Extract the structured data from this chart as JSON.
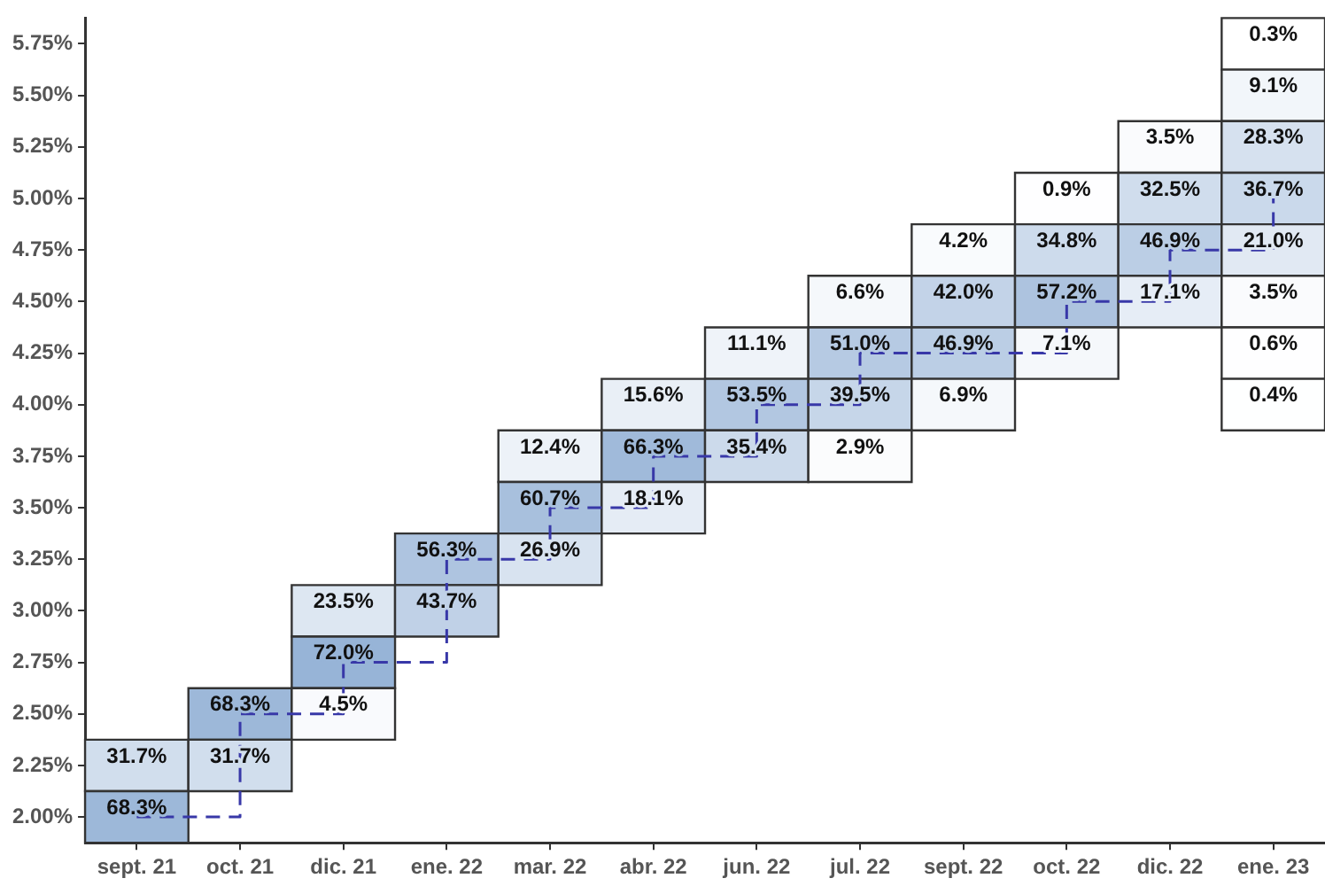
{
  "chart_data": {
    "type": "heatmap",
    "categories": [
      "sept. 21",
      "oct. 21",
      "dic. 21",
      "ene. 22",
      "mar. 22",
      "abr. 22",
      "jun. 22",
      "jul. 22",
      "sept. 22",
      "oct. 22",
      "dic. 22",
      "ene. 23"
    ],
    "ylim": [
      1.875,
      5.875
    ],
    "yticks": [
      {
        "value": 2,
        "label": "2.00%"
      },
      {
        "value": 2.25,
        "label": "2.25%"
      },
      {
        "value": 2.5,
        "label": "2.50%"
      },
      {
        "value": 2.75,
        "label": "2.75%"
      },
      {
        "value": 3,
        "label": "3.00%"
      },
      {
        "value": 3.25,
        "label": "3.25%"
      },
      {
        "value": 3.5,
        "label": "3.50%"
      },
      {
        "value": 3.75,
        "label": "3.75%"
      },
      {
        "value": 4,
        "label": "4.00%"
      },
      {
        "value": 4.25,
        "label": "4.25%"
      },
      {
        "value": 4.5,
        "label": "4.50%"
      },
      {
        "value": 4.75,
        "label": "4.75%"
      },
      {
        "value": 5,
        "label": "5.00%"
      },
      {
        "value": 5.25,
        "label": "5.25%"
      },
      {
        "value": 5.5,
        "label": "5.50%"
      },
      {
        "value": 5.75,
        "label": "5.75%"
      }
    ],
    "color": "#3f74b5",
    "cells": [
      [
        null,
        null,
        null,
        null,
        null,
        null,
        null,
        null,
        null,
        null,
        null,
        0.3
      ],
      [
        null,
        null,
        null,
        null,
        null,
        null,
        null,
        null,
        null,
        null,
        null,
        9.1
      ],
      [
        null,
        null,
        null,
        null,
        null,
        null,
        null,
        null,
        null,
        null,
        3.5,
        28.3
      ],
      [
        null,
        null,
        null,
        null,
        null,
        null,
        null,
        null,
        null,
        0.9,
        32.5,
        36.7
      ],
      [
        null,
        null,
        null,
        null,
        null,
        null,
        null,
        null,
        4.2,
        34.8,
        46.9,
        21.0
      ],
      [
        null,
        null,
        null,
        null,
        null,
        null,
        null,
        6.6,
        42.0,
        57.2,
        17.1,
        3.5
      ],
      [
        null,
        null,
        null,
        null,
        null,
        null,
        11.1,
        51.0,
        46.9,
        7.1,
        null,
        0.6
      ],
      [
        null,
        null,
        null,
        null,
        null,
        15.6,
        53.5,
        39.5,
        6.9,
        null,
        null,
        0.4
      ],
      [
        null,
        null,
        null,
        null,
        12.4,
        66.3,
        35.4,
        2.9,
        null,
        null,
        null,
        null
      ],
      [
        null,
        null,
        null,
        null,
        60.7,
        18.1,
        null,
        null,
        null,
        null,
        null,
        null
      ],
      [
        null,
        null,
        null,
        56.3,
        26.9,
        null,
        null,
        null,
        null,
        null,
        null,
        null
      ],
      [
        null,
        null,
        23.5,
        43.7,
        null,
        null,
        null,
        null,
        null,
        null,
        null,
        null
      ],
      [
        null,
        null,
        72.0,
        null,
        null,
        null,
        null,
        null,
        null,
        null,
        null,
        null
      ],
      [
        null,
        68.3,
        4.5,
        null,
        null,
        null,
        null,
        null,
        null,
        null,
        null,
        null
      ],
      [
        31.7,
        31.7,
        null,
        null,
        null,
        null,
        null,
        null,
        null,
        null,
        null,
        null
      ],
      [
        68.3,
        null,
        null,
        null,
        null,
        null,
        null,
        null,
        null,
        null,
        null,
        null
      ]
    ],
    "cell_labels": [
      [
        null,
        null,
        null,
        null,
        null,
        null,
        null,
        null,
        null,
        null,
        null,
        "0.3%"
      ],
      [
        null,
        null,
        null,
        null,
        null,
        null,
        null,
        null,
        null,
        null,
        null,
        "9.1%"
      ],
      [
        null,
        null,
        null,
        null,
        null,
        null,
        null,
        null,
        null,
        null,
        "3.5%",
        "28.3%"
      ],
      [
        null,
        null,
        null,
        null,
        null,
        null,
        null,
        null,
        null,
        "0.9%",
        "32.5%",
        "36.7%"
      ],
      [
        null,
        null,
        null,
        null,
        null,
        null,
        null,
        null,
        "4.2%",
        "34.8%",
        "46.9%",
        "21.0%"
      ],
      [
        null,
        null,
        null,
        null,
        null,
        null,
        null,
        "6.6%",
        "42.0%",
        "57.2%",
        "17.1%",
        "3.5%"
      ],
      [
        null,
        null,
        null,
        null,
        null,
        null,
        "11.1%",
        "51.0%",
        "46.9%",
        "7.1%",
        null,
        "0.6%"
      ],
      [
        null,
        null,
        null,
        null,
        null,
        "15.6%",
        "53.5%",
        "39.5%",
        "6.9%",
        null,
        null,
        "0.4%"
      ],
      [
        null,
        null,
        null,
        null,
        "12.4%",
        "66.3%",
        "35.4%",
        "2.9%",
        null,
        null,
        null,
        null
      ],
      [
        null,
        null,
        null,
        null,
        "60.7%",
        "18.1%",
        null,
        null,
        null,
        null,
        null,
        null
      ],
      [
        null,
        null,
        null,
        "56.3%",
        "26.9%",
        null,
        null,
        null,
        null,
        null,
        null,
        null
      ],
      [
        null,
        null,
        "23.5%",
        "43.7%",
        null,
        null,
        null,
        null,
        null,
        null,
        null,
        null
      ],
      [
        null,
        null,
        "72.0%",
        null,
        null,
        null,
        null,
        null,
        null,
        null,
        null,
        null
      ],
      [
        null,
        "68.3%",
        "4.5%",
        null,
        null,
        null,
        null,
        null,
        null,
        null,
        null,
        null
      ],
      [
        "31.7%",
        "31.7%",
        null,
        null,
        null,
        null,
        null,
        null,
        null,
        null,
        null,
        null
      ],
      [
        "68.3%",
        null,
        null,
        null,
        null,
        null,
        null,
        null,
        null,
        null,
        null,
        null
      ]
    ],
    "series": [
      {
        "type": "step",
        "color": "#3838a8",
        "line_style": "dashed",
        "values": [
          2.0,
          2.5,
          2.75,
          3.25,
          3.5,
          3.75,
          4.0,
          4.25,
          4.25,
          4.5,
          4.75,
          5.0
        ]
      }
    ]
  }
}
